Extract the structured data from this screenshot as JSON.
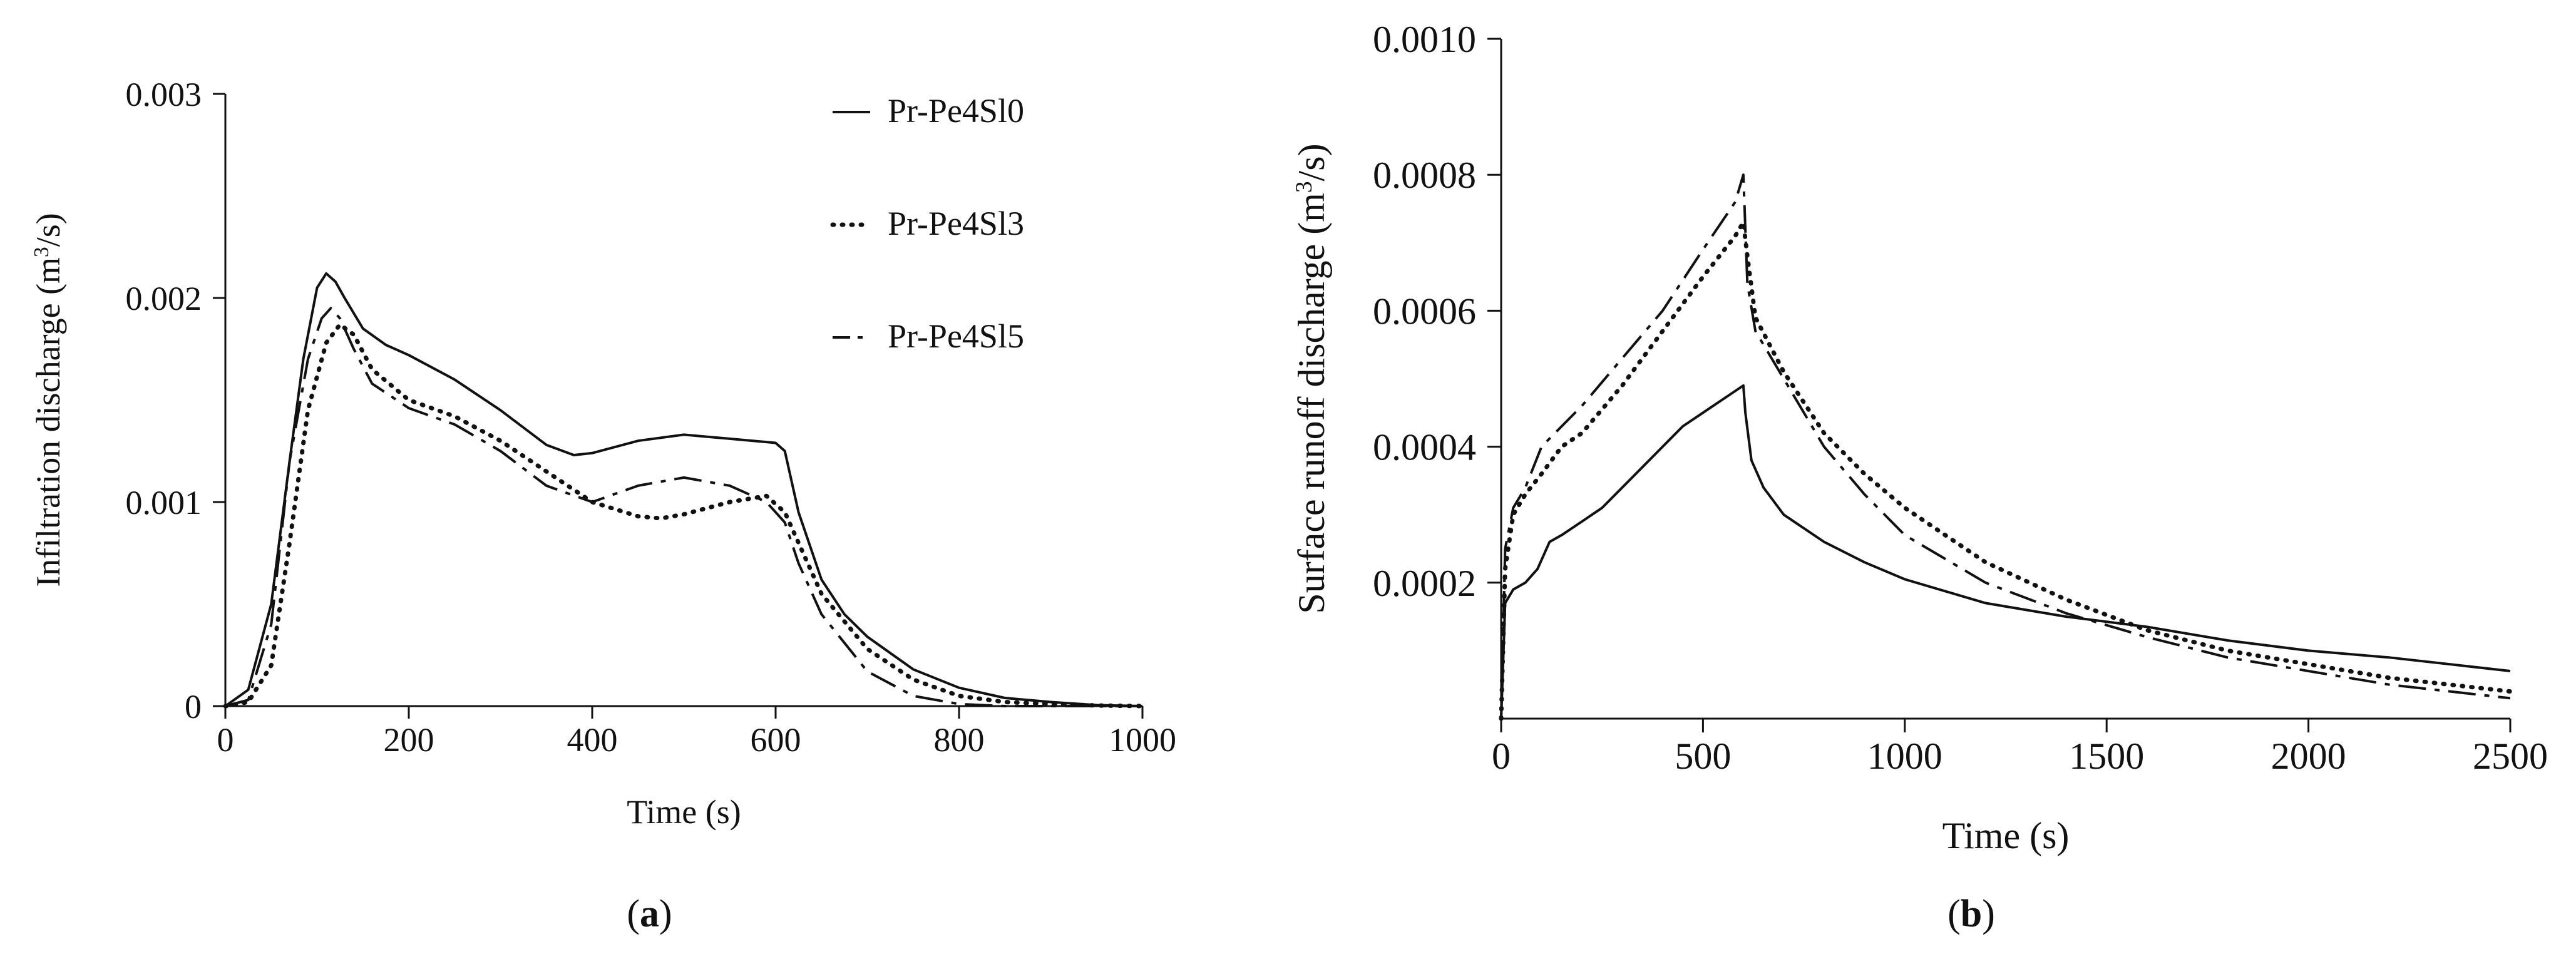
{
  "colors": {
    "ink": "#111111",
    "background": "#ffffff"
  },
  "chart_data": [
    {
      "type": "line",
      "panel_label": "a",
      "xlabel": "Time (s)",
      "ylabel": {
        "prefix": "Infiltration discharge (m",
        "sup": "3",
        "suffix": "/s)"
      },
      "xlim": [
        0,
        1000
      ],
      "ylim": [
        0,
        0.003
      ],
      "xticks": [
        0,
        200,
        400,
        600,
        800,
        1000
      ],
      "xtick_labels": [
        "0",
        "200",
        "400",
        "600",
        "800",
        "1000"
      ],
      "yticks": [
        0,
        0.001,
        0.002,
        0.003
      ],
      "ytick_labels": [
        "0",
        "0.001",
        "0.002",
        "0.003"
      ],
      "legend_position": "top-right",
      "series": [
        {
          "name": "Pr-Pe4Sl0",
          "style": "solid",
          "x": [
            0,
            25,
            50,
            70,
            85,
            100,
            110,
            120,
            130,
            150,
            175,
            200,
            250,
            300,
            350,
            380,
            400,
            450,
            500,
            550,
            600,
            610,
            625,
            650,
            675,
            700,
            750,
            800,
            850,
            900,
            950,
            1000
          ],
          "y": [
            0,
            8e-05,
            0.0005,
            0.0012,
            0.0017,
            0.00205,
            0.00212,
            0.00208,
            0.002,
            0.00185,
            0.00177,
            0.00172,
            0.0016,
            0.00145,
            0.00128,
            0.00123,
            0.00124,
            0.0013,
            0.00133,
            0.00131,
            0.00129,
            0.00125,
            0.00095,
            0.00062,
            0.00045,
            0.00034,
            0.00018,
            9e-05,
            4e-05,
            2e-05,
            5e-06,
            0
          ]
        },
        {
          "name": "Pr-Pe4Sl3",
          "style": "dotted",
          "x": [
            0,
            25,
            50,
            70,
            90,
            110,
            125,
            140,
            160,
            200,
            250,
            300,
            350,
            400,
            450,
            475,
            500,
            550,
            590,
            610,
            625,
            650,
            700,
            750,
            800,
            850,
            900,
            950,
            1000
          ],
          "y": [
            0,
            2e-05,
            0.0002,
            0.0008,
            0.00145,
            0.00178,
            0.00187,
            0.00182,
            0.00165,
            0.0015,
            0.00142,
            0.0013,
            0.00115,
            0.001,
            0.00093,
            0.00092,
            0.00094,
            0.001,
            0.00103,
            0.00095,
            0.0008,
            0.00055,
            0.00028,
            0.00013,
            5e-05,
            2e-05,
            1e-05,
            3e-06,
            0
          ]
        },
        {
          "name": "Pr-Pe4Sl5",
          "style": "dashdot",
          "x": [
            0,
            25,
            50,
            70,
            90,
            105,
            115,
            125,
            140,
            160,
            200,
            250,
            300,
            350,
            400,
            450,
            500,
            550,
            590,
            610,
            625,
            650,
            700,
            750,
            800,
            850,
            900,
            950,
            1000
          ],
          "y": [
            0,
            3e-05,
            0.0004,
            0.0012,
            0.0017,
            0.0019,
            0.00195,
            0.0019,
            0.00175,
            0.00158,
            0.00146,
            0.00138,
            0.00125,
            0.00108,
            0.001,
            0.00108,
            0.00112,
            0.00108,
            0.001,
            0.0009,
            0.0007,
            0.00045,
            0.00017,
            5e-05,
            1e-05,
            0,
            0,
            0,
            0
          ]
        }
      ]
    },
    {
      "type": "line",
      "panel_label": "b",
      "xlabel": "Time (s)",
      "ylabel": {
        "prefix": "Surface runoff discharge (m",
        "sup": "3",
        "suffix": "/s)"
      },
      "xlim": [
        0,
        2500
      ],
      "ylim": [
        0,
        0.001
      ],
      "xticks": [
        0,
        500,
        1000,
        1500,
        2000,
        2500
      ],
      "xtick_labels": [
        "0",
        "500",
        "1000",
        "1500",
        "2000",
        "2500"
      ],
      "yticks": [
        0.0002,
        0.0004,
        0.0006,
        0.0008,
        0.001
      ],
      "ytick_labels": [
        "0.0002",
        "0.0004",
        "0.0006",
        "0.0008",
        "0.0010"
      ],
      "series": [
        {
          "name": "Pr-Pe4Sl0",
          "style": "solid",
          "x": [
            0,
            10,
            30,
            60,
            90,
            120,
            150,
            200,
            250,
            300,
            350,
            400,
            450,
            500,
            550,
            600,
            605,
            620,
            650,
            700,
            800,
            900,
            1000,
            1200,
            1400,
            1600,
            1800,
            2000,
            2200,
            2500
          ],
          "y": [
            0,
            0.00017,
            0.00019,
            0.0002,
            0.00022,
            0.00026,
            0.00027,
            0.00029,
            0.00031,
            0.00034,
            0.00037,
            0.0004,
            0.00043,
            0.00045,
            0.00047,
            0.00049,
            0.00045,
            0.00038,
            0.00034,
            0.0003,
            0.00026,
            0.00023,
            0.000205,
            0.00017,
            0.00015,
            0.000135,
            0.000115,
            0.0001,
            9e-05,
            7e-05
          ]
        },
        {
          "name": "Pr-Pe4Sl3",
          "style": "dotted",
          "x": [
            0,
            10,
            30,
            60,
            100,
            150,
            200,
            300,
            400,
            500,
            580,
            600,
            610,
            630,
            700,
            800,
            900,
            1000,
            1200,
            1400,
            1600,
            1800,
            2000,
            2200,
            2500
          ],
          "y": [
            0,
            0.00022,
            0.0003,
            0.00033,
            0.00036,
            0.0004,
            0.00042,
            0.00049,
            0.00057,
            0.00065,
            0.00071,
            0.00073,
            0.00068,
            0.00059,
            0.00051,
            0.00042,
            0.00036,
            0.00031,
            0.00023,
            0.000175,
            0.00013,
            0.0001,
            8e-05,
            6e-05,
            4e-05
          ]
        },
        {
          "name": "Pr-Pe4Sl5",
          "style": "dashdot",
          "x": [
            0,
            10,
            30,
            60,
            100,
            150,
            200,
            300,
            400,
            500,
            580,
            600,
            610,
            630,
            700,
            800,
            900,
            1000,
            1200,
            1400,
            1600,
            1800,
            2000,
            2200,
            2500
          ],
          "y": [
            0,
            0.00025,
            0.00031,
            0.00034,
            0.0004,
            0.00043,
            0.00046,
            0.00053,
            0.0006,
            0.00069,
            0.00076,
            0.0008,
            0.00064,
            0.00057,
            0.0005,
            0.0004,
            0.00033,
            0.00027,
            0.0002,
            0.000155,
            0.00012,
            9e-05,
            7e-05,
            5e-05,
            3e-05
          ]
        }
      ]
    }
  ]
}
